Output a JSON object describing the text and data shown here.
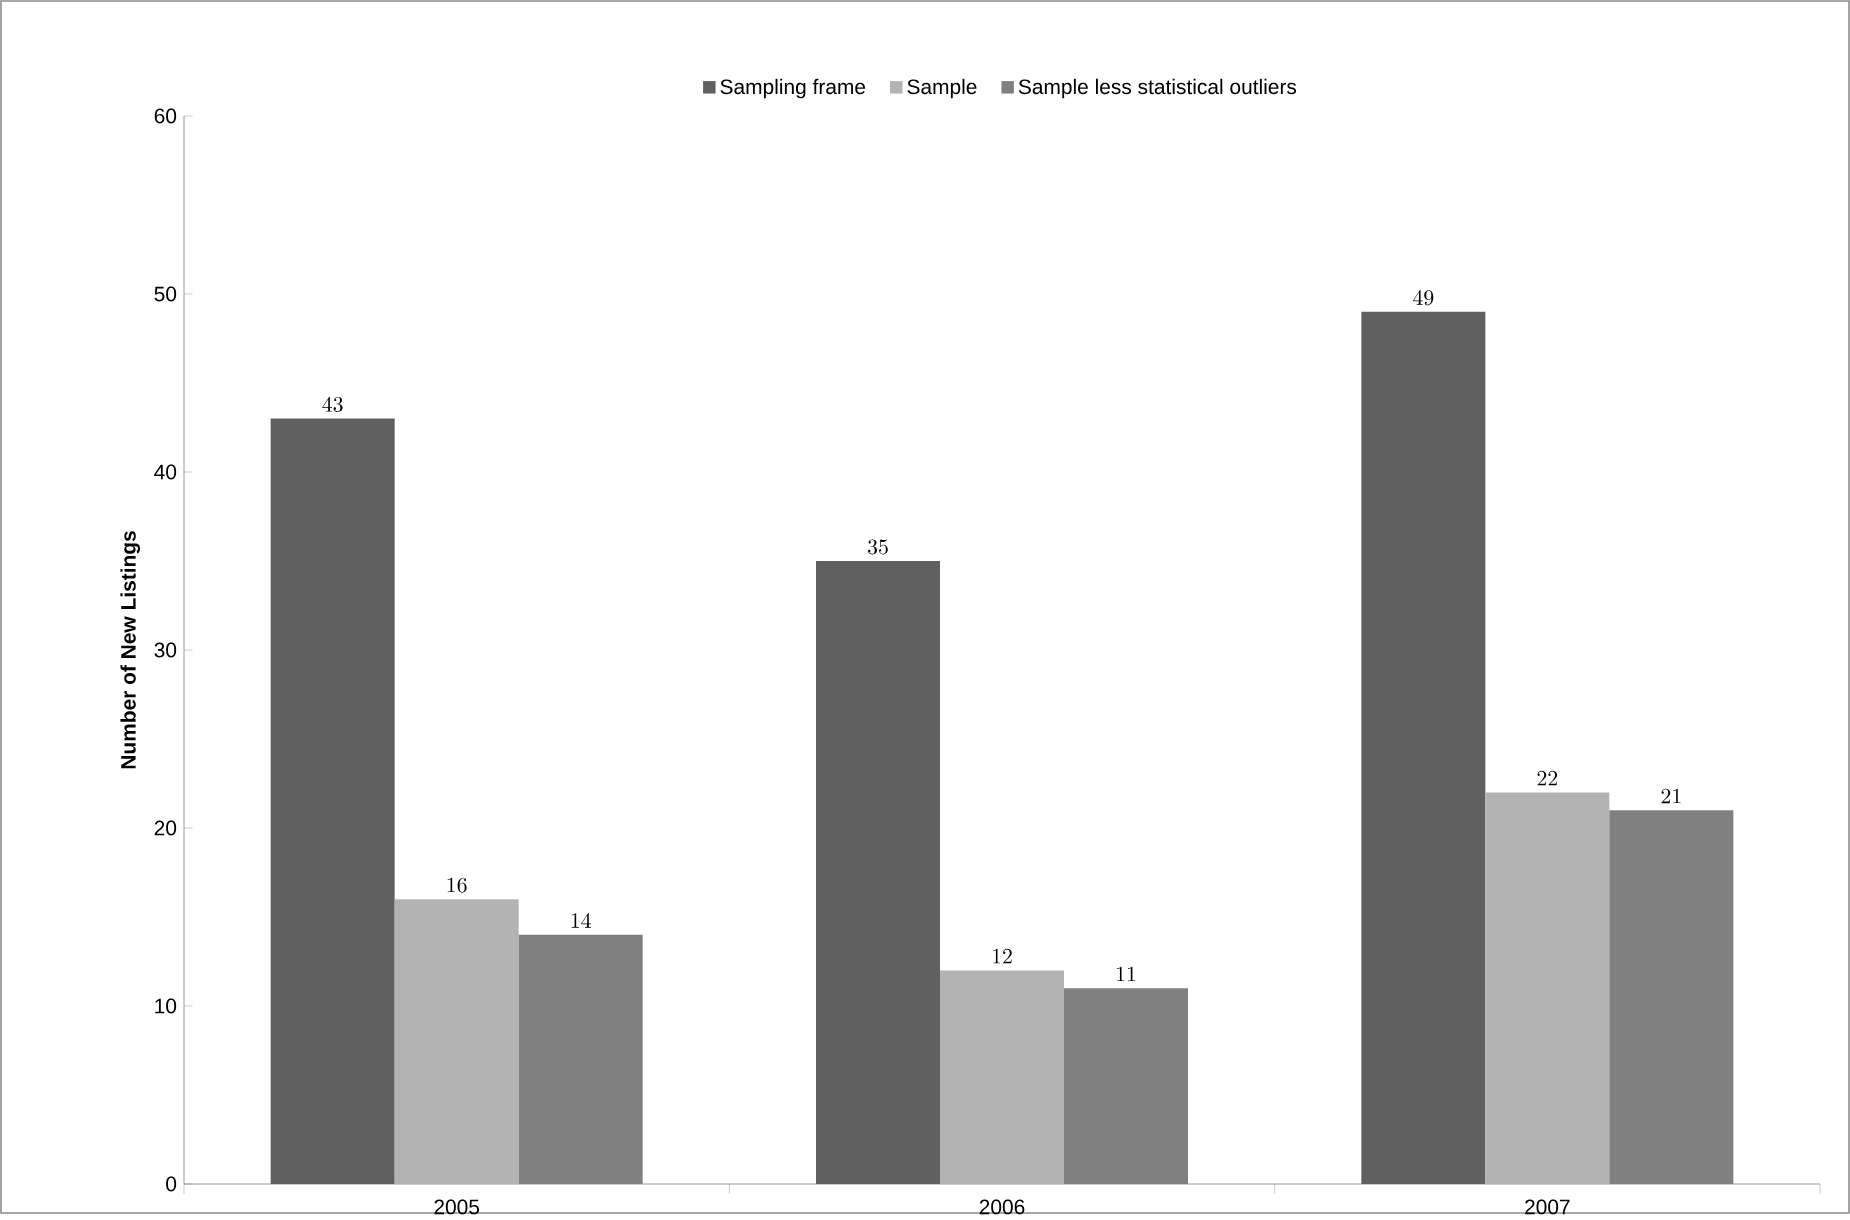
{
  "chart_data": {
    "type": "bar",
    "ylabel": "Number of New Listings",
    "categories": [
      "2005",
      "2006",
      "2007"
    ],
    "series": [
      {
        "name": "Sampling frame",
        "color": "#606060",
        "values": [
          43,
          35,
          49
        ]
      },
      {
        "name": "Sample",
        "color": "#b3b3b3",
        "values": [
          16,
          12,
          22
        ]
      },
      {
        "name": "Sample less statistical outliers",
        "color": "#808080",
        "values": [
          14,
          11,
          21
        ]
      }
    ],
    "ylim": [
      0,
      60
    ],
    "yticks": [
      0,
      10,
      20,
      30,
      40,
      50,
      60
    ],
    "grid": false,
    "legend": "top",
    "data_labels": true
  }
}
